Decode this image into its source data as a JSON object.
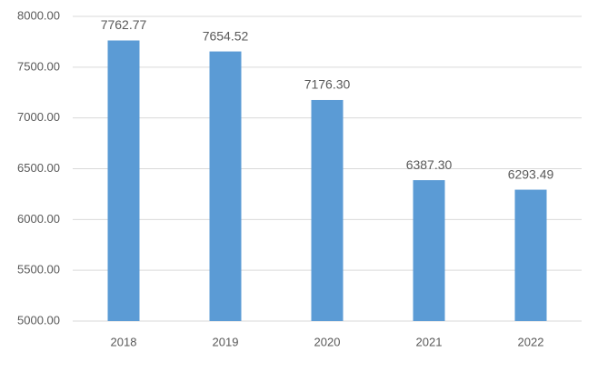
{
  "chart_data": {
    "type": "bar",
    "categories": [
      "2018",
      "2019",
      "2020",
      "2021",
      "2022"
    ],
    "values": [
      7762.77,
      7654.52,
      7176.3,
      6387.3,
      6293.49
    ],
    "value_labels": [
      "7762.77",
      "7654.52",
      "7176.30",
      "6387.30",
      "6293.49"
    ],
    "color": "#5b9bd5",
    "ylim": [
      5000,
      8000
    ],
    "yticks": [
      {
        "value": 5000,
        "label": "5000.00"
      },
      {
        "value": 5500,
        "label": "5500.00"
      },
      {
        "value": 6000,
        "label": "6000.00"
      },
      {
        "value": 6500,
        "label": "6500.00"
      },
      {
        "value": 7000,
        "label": "7000.00"
      },
      {
        "value": 7500,
        "label": "7500.00"
      },
      {
        "value": 8000,
        "label": "8000.00"
      }
    ],
    "grid": true
  }
}
